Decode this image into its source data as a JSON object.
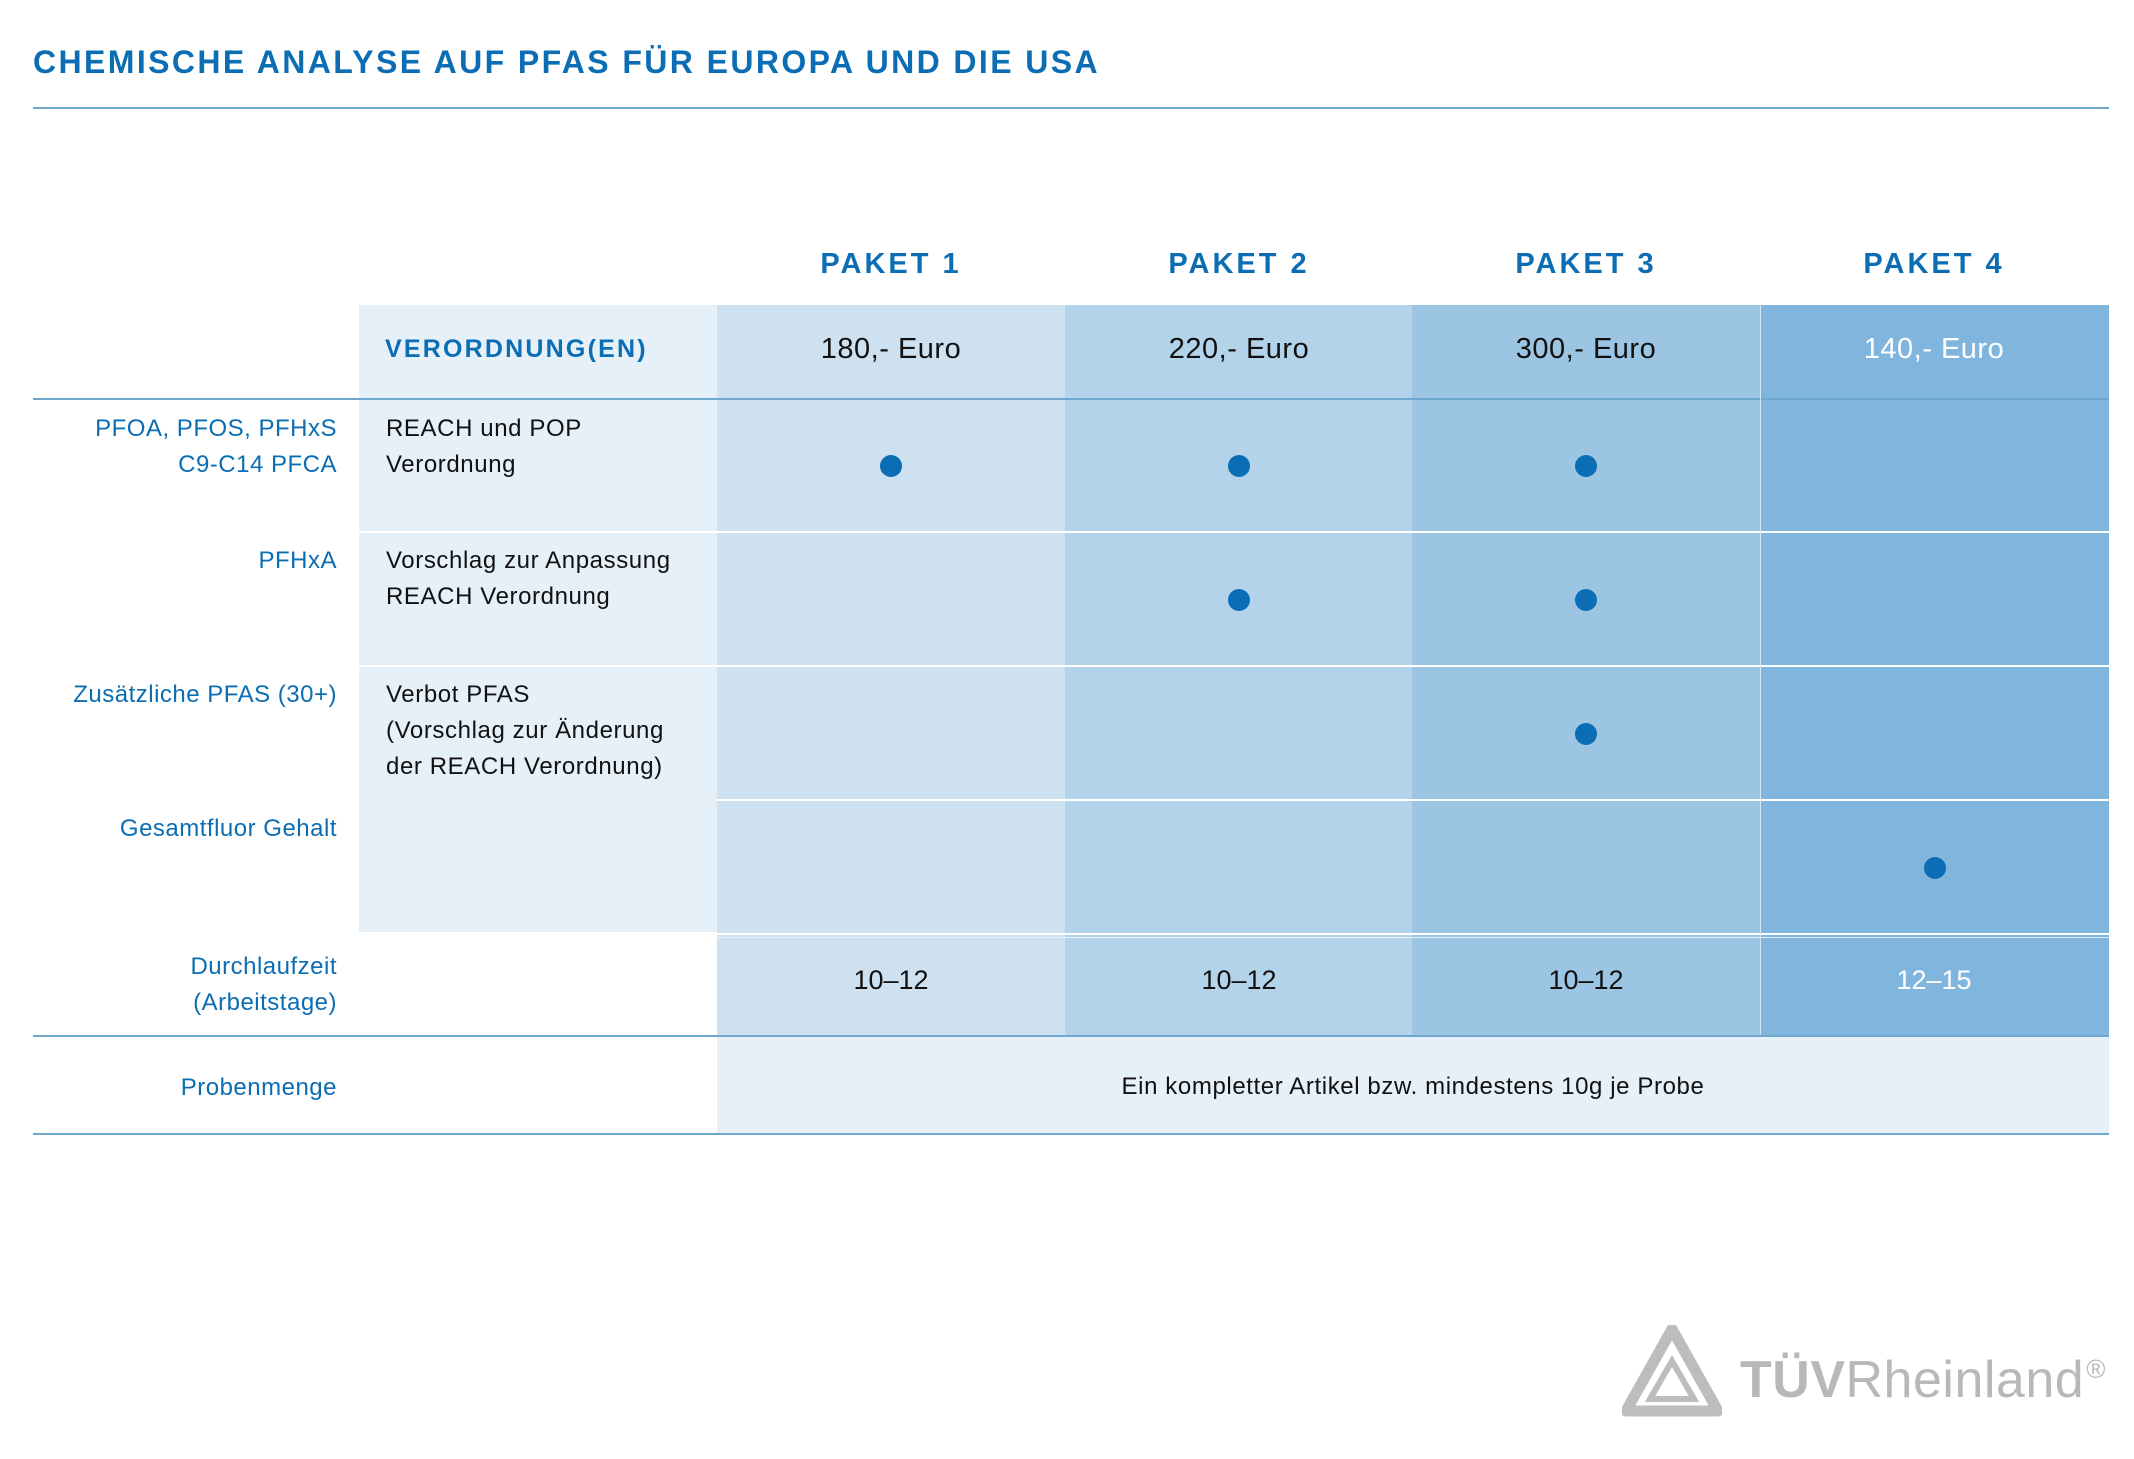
{
  "title": "CHEMISCHE ANALYSE AUF PFAS FÜR EUROPA UND DIE USA",
  "header": {
    "regulations_label": "VERORDNUNG(EN)",
    "packages": [
      {
        "name": "PAKET 1",
        "price": "180,- Euro",
        "turnaround": "10–12"
      },
      {
        "name": "PAKET 2",
        "price": "220,- Euro",
        "turnaround": "10–12"
      },
      {
        "name": "PAKET 3",
        "price": "300,- Euro",
        "turnaround": "10–12"
      },
      {
        "name": "PAKET 4",
        "price": "140,- Euro",
        "turnaround": "12–15"
      }
    ]
  },
  "rows": [
    {
      "label_lines": [
        "PFOA, PFOS, PFHxS",
        "C9-C14 PFCA"
      ],
      "regulation_lines": [
        "REACH und POP",
        "Verordnung"
      ],
      "included": [
        true,
        true,
        true,
        false
      ]
    },
    {
      "label_lines": [
        "PFHxA"
      ],
      "regulation_lines": [
        "Vorschlag zur Anpassung",
        "REACH Verordnung"
      ],
      "included": [
        false,
        true,
        true,
        false
      ]
    },
    {
      "label_lines": [
        "Zusätzliche PFAS (30+)"
      ],
      "regulation_lines": [
        "Verbot PFAS",
        "(Vorschlag zur Änderung",
        "der REACH Verordnung)"
      ],
      "included": [
        false,
        false,
        true,
        false
      ]
    },
    {
      "label_lines": [
        "Gesamtfluor Gehalt"
      ],
      "regulation_lines": [],
      "included": [
        false,
        false,
        false,
        true
      ]
    }
  ],
  "turnaround": {
    "label_lines": [
      "Durchlaufzeit",
      "(Arbeitstage)"
    ]
  },
  "sample": {
    "label": "Probenmenge",
    "text": "Ein kompletter Artikel bzw. mindestens 10g je Probe"
  },
  "logo": {
    "part1": "TÜV",
    "part2": "Rheinland",
    "mark": "®"
  },
  "colors": {
    "accent": "#0b6db3",
    "paket1": "#cde1f0",
    "paket2": "#b3d3ea",
    "paket3": "#9cc5e4",
    "paket4": "#80b6dd",
    "regulation_bg": "#e6f0f8"
  }
}
